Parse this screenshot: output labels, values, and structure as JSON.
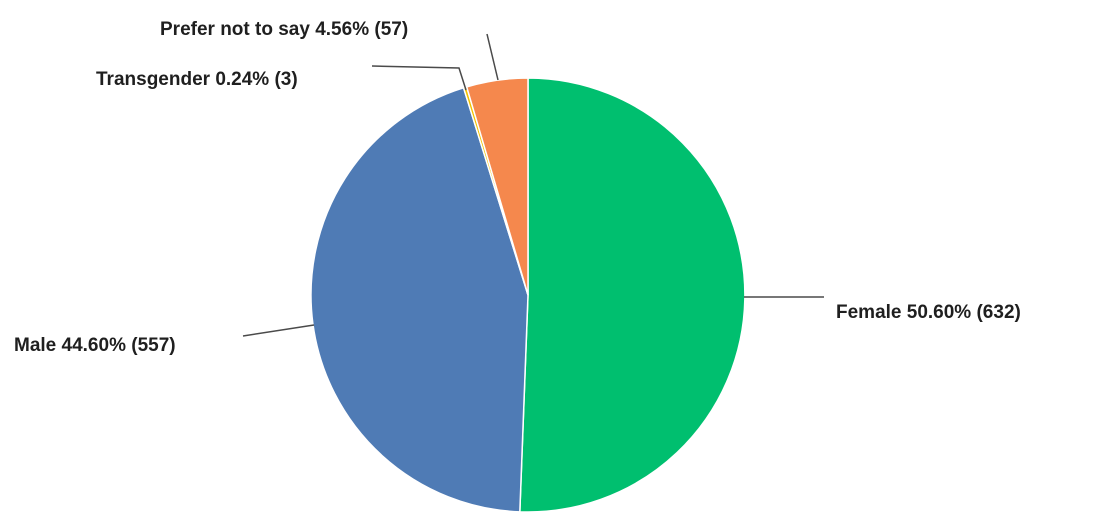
{
  "chart_data": {
    "type": "pie",
    "title": "",
    "slices": [
      {
        "label": "Female",
        "percent": 50.6,
        "count": 632,
        "color": "#00bf6f",
        "text": "Female  50.60% (632)"
      },
      {
        "label": "Male",
        "percent": 44.6,
        "count": 557,
        "color": "#4f7bb5",
        "text": "Male 44.60% (557)"
      },
      {
        "label": "Transgender",
        "percent": 0.24,
        "count": 3,
        "color": "#f2c200",
        "text": "Transgender 0.24% (3)"
      },
      {
        "label": "Prefer not to say",
        "percent": 4.56,
        "count": 57,
        "color": "#f5884d",
        "text": "Prefer not to say 4.56% (57)"
      }
    ],
    "legend": "none",
    "direction": "clockwise from top"
  }
}
